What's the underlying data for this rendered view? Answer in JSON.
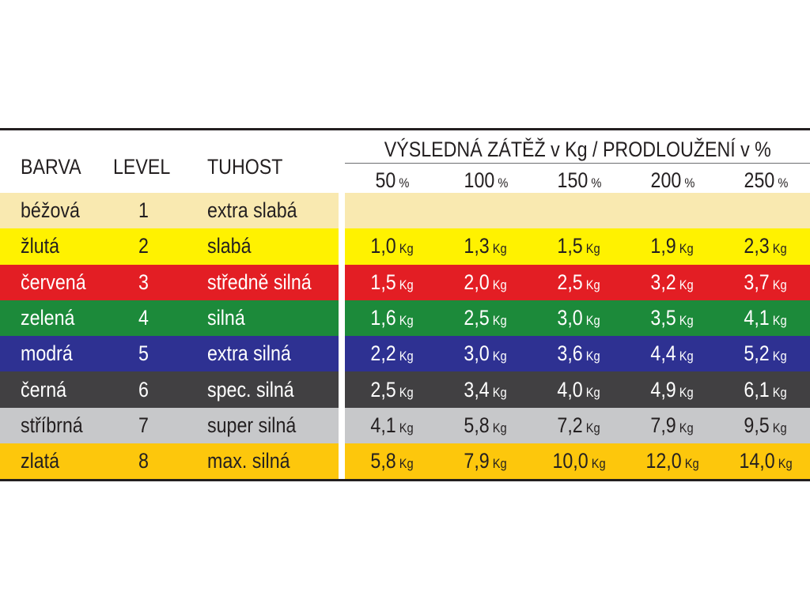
{
  "header": {
    "col_barva": "BARVA",
    "col_level": "LEVEL",
    "col_tuhost": "TUHOST",
    "title": "VÝSLEDNÁ ZÁTĚŽ v Kg  /  PRODLOUŽENÍ v %",
    "percent_unit": "%",
    "percents": [
      "50",
      "100",
      "150",
      "200",
      "250"
    ]
  },
  "unit_kg": "Kg",
  "rows": [
    {
      "barva": "béžová",
      "level": "1",
      "tuhost": "extra slabá",
      "bg": "#f9e9b0",
      "fg": "#231f20",
      "values": []
    },
    {
      "barva": "žlutá",
      "level": "2",
      "tuhost": "slabá",
      "bg": "#fff200",
      "fg": "#231f20",
      "values": [
        "1,0",
        "1,3",
        "1,5",
        "1,9",
        "2,3"
      ]
    },
    {
      "barva": "červená",
      "level": "3",
      "tuhost": "středně silná",
      "bg": "#e31e24",
      "fg": "#ffffff",
      "values": [
        "1,5",
        "2,0",
        "2,5",
        "3,2",
        "3,7"
      ]
    },
    {
      "barva": "zelená",
      "level": "4",
      "tuhost": "silná",
      "bg": "#1c8a3a",
      "fg": "#ffffff",
      "values": [
        "1,6",
        "2,5",
        "3,0",
        "3,5",
        "4,1"
      ]
    },
    {
      "barva": "modrá",
      "level": "5",
      "tuhost": "extra silná",
      "bg": "#2e3192",
      "fg": "#ffffff",
      "values": [
        "2,2",
        "3,0",
        "3,6",
        "4,4",
        "5,2"
      ]
    },
    {
      "barva": "černá",
      "level": "6",
      "tuhost": "spec. silná",
      "bg": "#414042",
      "fg": "#ffffff",
      "values": [
        "2,5",
        "3,4",
        "4,0",
        "4,9",
        "6,1"
      ]
    },
    {
      "barva": "stříbrná",
      "level": "7",
      "tuhost": "super silná",
      "bg": "#c7c8ca",
      "fg": "#231f20",
      "values": [
        "4,1",
        "5,8",
        "7,2",
        "7,9",
        "9,5"
      ]
    },
    {
      "barva": "zlatá",
      "level": "8",
      "tuhost": "max. silná",
      "bg": "#fdc70c",
      "fg": "#231f20",
      "values": [
        "5,8",
        "7,9",
        "10,0",
        "12,0",
        "14,0"
      ]
    }
  ]
}
